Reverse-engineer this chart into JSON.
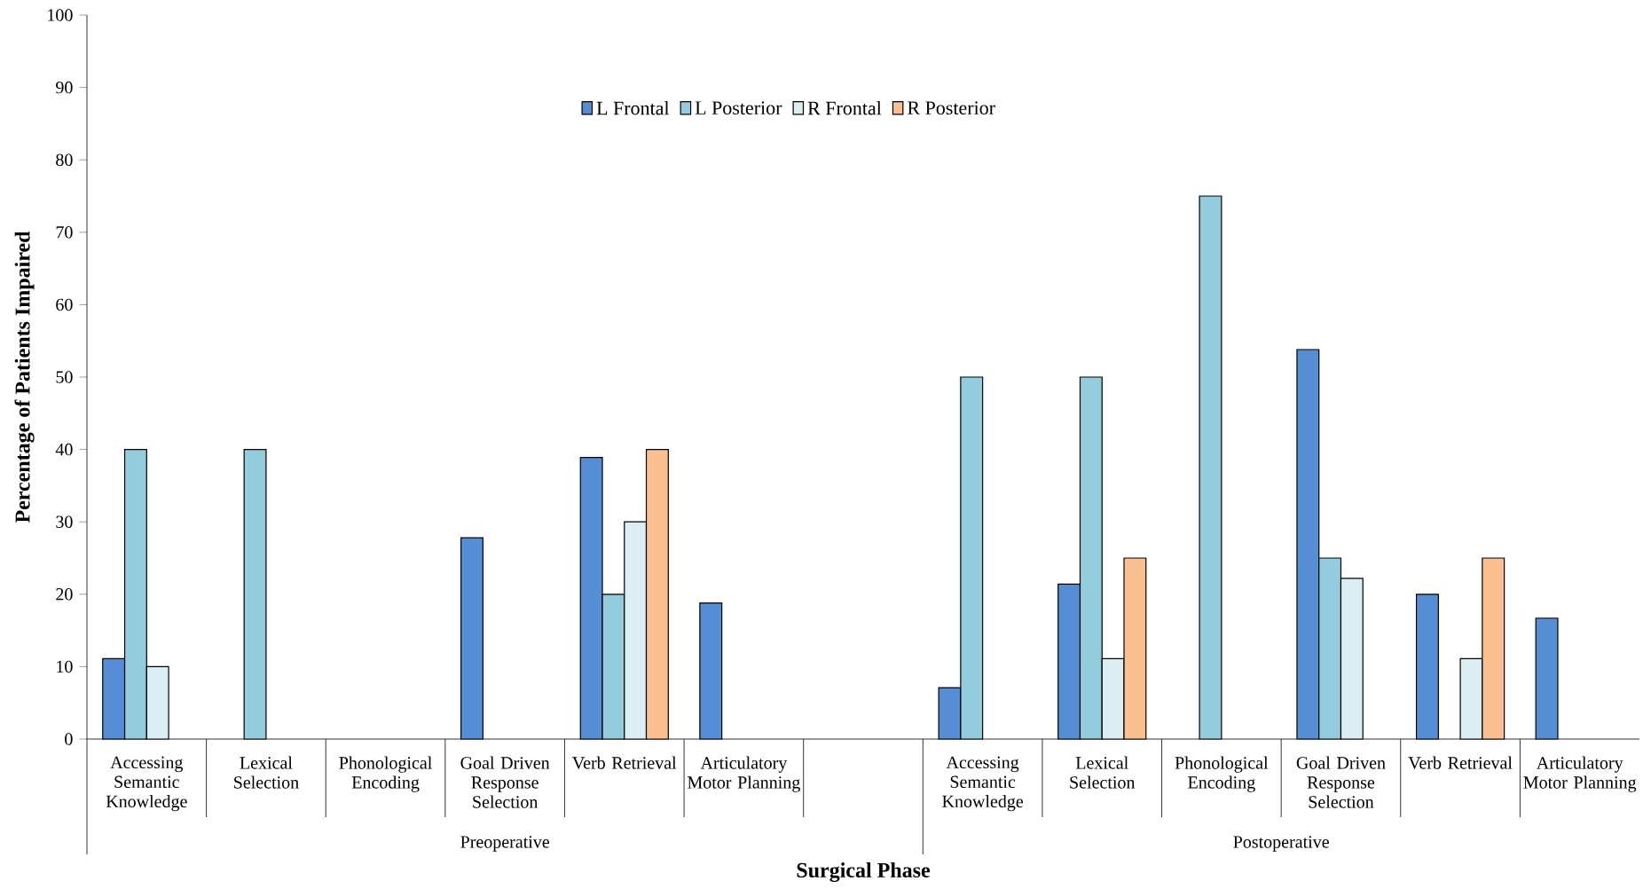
{
  "chart_data": {
    "type": "bar",
    "xlabel": "Surgical Phase",
    "ylabel": "Percentage of Patients Impaired",
    "categories": [
      "Accessing Semantic Knowledge",
      "Lexical Selection",
      "Phonological Encoding",
      "Goal Driven Response Selection",
      "Verb Retrieval",
      "Articulatory Motor Planning",
      null,
      "Accessing Semantic Knowledge",
      "Lexical Selection",
      "Phonological Encoding",
      "Goal Driven Response Selection",
      "Verb Retrieval",
      "Articulatory Motor Planning"
    ],
    "series": [
      {
        "name": "L Frontal",
        "color": "#558ed5",
        "values": [
          11.1,
          null,
          null,
          27.8,
          38.9,
          18.8,
          null,
          7.1,
          21.4,
          null,
          53.8,
          20,
          16.7
        ]
      },
      {
        "name": "L Posterior",
        "color": "#93cddd",
        "values": [
          40,
          40,
          null,
          null,
          20,
          null,
          null,
          50,
          50,
          75,
          25,
          null,
          null
        ]
      },
      {
        "name": "R Frontal",
        "color": "#dbeef4",
        "values": [
          10,
          null,
          null,
          null,
          30,
          null,
          null,
          null,
          11.1,
          null,
          22.2,
          11.1,
          null
        ]
      },
      {
        "name": "R Posterior",
        "color": "#fac090",
        "values": [
          null,
          null,
          null,
          null,
          40,
          null,
          null,
          null,
          25,
          null,
          null,
          25,
          null
        ]
      }
    ],
    "ylim": [
      0,
      100
    ],
    "yticks": [
      0,
      10,
      20,
      30,
      40,
      50,
      60,
      70,
      80,
      90,
      100
    ],
    "grid": false,
    "legend": "top",
    "annotations": [
      "Preoperative",
      "Postoperative"
    ]
  }
}
